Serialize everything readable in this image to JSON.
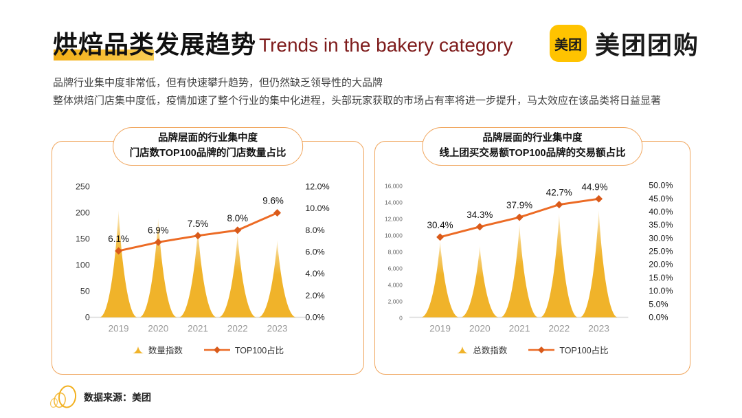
{
  "header": {
    "title_zh": "烘焙品类发展趋势",
    "title_en": "Trends in the bakery category",
    "logo_badge": "美团",
    "logo_text": "美团团购"
  },
  "intro": {
    "line1": "品牌行业集中度非常低，但有快速攀升趋势，但仍然缺乏领导性的大品牌",
    "line2": "整体烘焙门店集中度低，疫情加速了整个行业的集中化进程，头部玩家获取的市场占有率将进一步提升，马太效应在该品类将日益显著"
  },
  "chart_data": [
    {
      "type": "bar",
      "subtype": "spike-area with line overlay, dual axis",
      "title_line1": "品牌层面的行业集中度",
      "title_line2": "门店数TOP100品牌的门店数量占比",
      "categories": [
        "2019",
        "2020",
        "2021",
        "2022",
        "2023"
      ],
      "series": [
        {
          "name": "数量指数",
          "type": "spike",
          "axis": "left",
          "values": [
            205,
            190,
            170,
            160,
            148
          ]
        },
        {
          "name": "TOP100占比",
          "type": "line",
          "axis": "right",
          "values": [
            6.1,
            6.9,
            7.5,
            8.0,
            9.6
          ],
          "labels": [
            "6.1%",
            "6.9%",
            "7.5%",
            "8.0%",
            "9.6%"
          ]
        }
      ],
      "left_axis": {
        "ticks": [
          "250",
          "200",
          "150",
          "100",
          "50",
          "0"
        ],
        "max": 250
      },
      "right_axis": {
        "ticks": [
          "12.0%",
          "10.0%",
          "8.0%",
          "6.0%",
          "4.0%",
          "2.0%",
          "0.0%"
        ],
        "max": 12
      },
      "legend": [
        "数量指数",
        "TOP100占比"
      ],
      "grid": "off",
      "legend_position": "bottom"
    },
    {
      "type": "bar",
      "subtype": "spike-area with line overlay, dual axis",
      "title_line1": "品牌层面的行业集中度",
      "title_line2": "线上团买交易额TOP100品牌的交易额占比",
      "categories": [
        "2019",
        "2020",
        "2021",
        "2022",
        "2023"
      ],
      "series": [
        {
          "name": "总数指数",
          "type": "spike",
          "axis": "left",
          "values": [
            9300,
            8700,
            11300,
            12600,
            13000
          ]
        },
        {
          "name": "TOP100占比",
          "type": "line",
          "axis": "right",
          "values": [
            30.4,
            34.3,
            37.9,
            42.7,
            44.9
          ],
          "labels": [
            "30.4%",
            "34.3%",
            "37.9%",
            "42.7%",
            "44.9%"
          ]
        }
      ],
      "left_axis": {
        "ticks": [
          "16,000",
          "14,000",
          "12,000",
          "10,000",
          "8,000",
          "6,000",
          "4,000",
          "2,000",
          "0"
        ],
        "max": 16000
      },
      "right_axis": {
        "ticks": [
          "50.0%",
          "45.0%",
          "40.0%",
          "35.0%",
          "30.0%",
          "25.0%",
          "20.0%",
          "15.0%",
          "10.0%",
          "5.0%",
          "0.0%"
        ],
        "max": 50
      },
      "legend": [
        "总数指数",
        "TOP100占比"
      ],
      "grid": "off",
      "legend_position": "bottom"
    }
  ],
  "footer": {
    "source_label": "数据来源：美团"
  },
  "colors": {
    "spike": "#F0B32A",
    "line": "#EC6B25",
    "marker": "#D95A1A",
    "panel_border": "#F0A55C",
    "title_en": "#7E1B1B",
    "logo_yellow": "#FFC300",
    "highlight_from": "#F3AE15",
    "highlight_to": "#F9CE55",
    "accent_gold": "#F2B01F",
    "baseline": "#DCDCDC",
    "year_text": "#9A9A9A",
    "axis_text": "#333333"
  }
}
